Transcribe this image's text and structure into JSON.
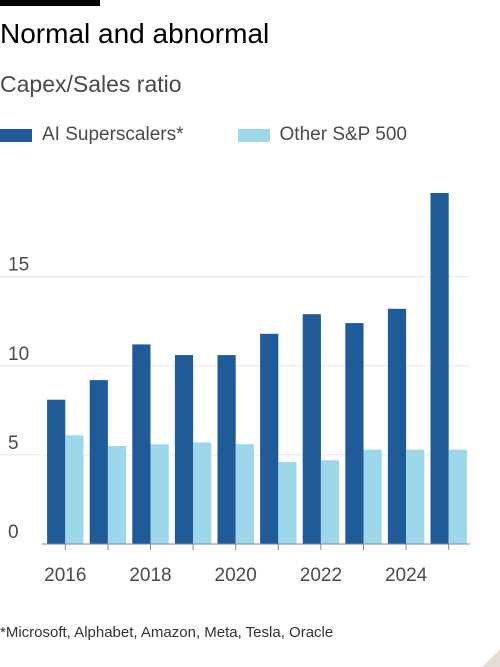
{
  "title": "Normal and abnormal",
  "subtitle": "Capex/Sales ratio",
  "footnote": "*Microsoft, Alphabet, Amazon, Meta, Tesla, Oracle",
  "colors": {
    "series_1": "#1f5a99",
    "series_2": "#9cd7ea",
    "gridline": "#e5e5e5",
    "axis": "#8a8a8a"
  },
  "chart_data": {
    "type": "bar",
    "title": "Normal and abnormal",
    "subtitle": "Capex/Sales ratio",
    "categories": [
      "2016",
      "2017",
      "2018",
      "2019",
      "2020",
      "2021",
      "2022",
      "2023",
      "2024",
      "2025"
    ],
    "x_tick_labels": [
      "2016",
      "2018",
      "2020",
      "2022",
      "2024"
    ],
    "series": [
      {
        "name": "AI Superscalers*",
        "color": "#1f5a99",
        "values": [
          8.1,
          9.2,
          11.2,
          10.6,
          10.6,
          11.8,
          12.9,
          12.4,
          13.2,
          19.7
        ]
      },
      {
        "name": "Other S&P 500",
        "color": "#9cd7ea",
        "values": [
          6.1,
          5.5,
          5.6,
          5.7,
          5.6,
          4.6,
          4.7,
          5.3,
          5.3,
          5.3
        ]
      }
    ],
    "ylim": [
      0,
      20
    ],
    "yticks": [
      0,
      5,
      10,
      15
    ],
    "xlabel": "",
    "ylabel": "",
    "grid": true,
    "legend_position": "top-left"
  }
}
